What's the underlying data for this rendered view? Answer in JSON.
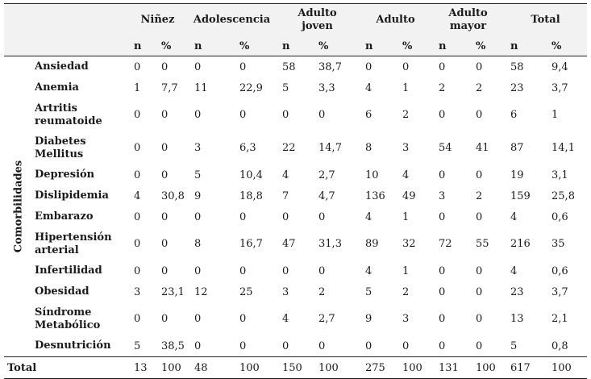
{
  "table": {
    "side_label": "Comorbilidades",
    "groups": [
      "Niñez",
      "Adolescencia",
      "Adulto\njoven",
      "Adulto",
      "Adulto\nmayor",
      "Total"
    ],
    "sub_headers": [
      "n",
      "%"
    ],
    "rows": [
      {
        "label": "Ansiedad",
        "values": [
          "0",
          "0",
          "0",
          "0",
          "58",
          "38,7",
          "0",
          "0",
          "0",
          "0",
          "58",
          "9,4"
        ]
      },
      {
        "label": "Anemia",
        "values": [
          "1",
          "7,7",
          "11",
          "22,9",
          "5",
          "3,3",
          "4",
          "1",
          "2",
          "2",
          "23",
          "3,7"
        ]
      },
      {
        "label": "Artritis\nreumatoide",
        "values": [
          "0",
          "0",
          "0",
          "0",
          "0",
          "0",
          "6",
          "2",
          "0",
          "0",
          "6",
          "1"
        ]
      },
      {
        "label": "Diabetes\nMellitus",
        "values": [
          "0",
          "0",
          "3",
          "6,3",
          "22",
          "14,7",
          "8",
          "3",
          "54",
          "41",
          "87",
          "14,1"
        ]
      },
      {
        "label": "Depresión",
        "values": [
          "0",
          "0",
          "5",
          "10,4",
          "4",
          "2,7",
          "10",
          "4",
          "0",
          "0",
          "19",
          "3,1"
        ]
      },
      {
        "label": "Dislipidemia",
        "values": [
          "4",
          "30,8",
          "9",
          "18,8",
          "7",
          "4,7",
          "136",
          "49",
          "3",
          "2",
          "159",
          "25,8"
        ]
      },
      {
        "label": "Embarazo",
        "values": [
          "0",
          "0",
          "0",
          "0",
          "0",
          "0",
          "4",
          "1",
          "0",
          "0",
          "4",
          "0,6"
        ]
      },
      {
        "label": "Hipertensión\narterial",
        "values": [
          "0",
          "0",
          "8",
          "16,7",
          "47",
          "31,3",
          "89",
          "32",
          "72",
          "55",
          "216",
          "35"
        ]
      },
      {
        "label": "Infertilidad",
        "values": [
          "0",
          "0",
          "0",
          "0",
          "0",
          "0",
          "4",
          "1",
          "0",
          "0",
          "4",
          "0,6"
        ]
      },
      {
        "label": "Obesidad",
        "values": [
          "3",
          "23,1",
          "12",
          "25",
          "3",
          "2",
          "5",
          "2",
          "0",
          "0",
          "23",
          "3,7"
        ]
      },
      {
        "label": "Síndrome\nMetabólico",
        "values": [
          "0",
          "0",
          "0",
          "0",
          "4",
          "2,7",
          "9",
          "3",
          "0",
          "0",
          "13",
          "2,1"
        ]
      },
      {
        "label": "Desnutrición",
        "values": [
          "5",
          "38,5",
          "0",
          "0",
          "0",
          "0",
          "0",
          "0",
          "0",
          "0",
          "5",
          "0,8"
        ]
      }
    ],
    "total": {
      "label": "Total",
      "values": [
        "13",
        "100",
        "48",
        "100",
        "150",
        "100",
        "275",
        "100",
        "131",
        "100",
        "617",
        "100"
      ]
    }
  }
}
